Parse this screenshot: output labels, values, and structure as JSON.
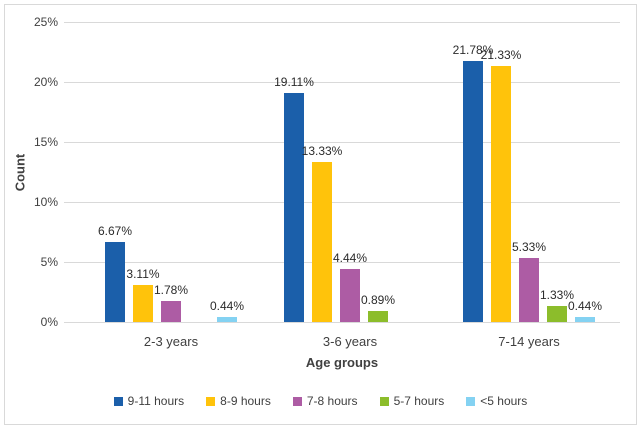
{
  "chart_data": {
    "type": "bar",
    "title": "",
    "xlabel": "Age groups",
    "ylabel": "Count",
    "categories": [
      "2-3 years",
      "3-6 years",
      "7-14 years"
    ],
    "series": [
      {
        "name": "9-11 hours",
        "color": "#1B5FAA",
        "values": [
          6.67,
          19.11,
          21.78
        ]
      },
      {
        "name": "8-9 hours",
        "color": "#FFC30B",
        "values": [
          3.11,
          13.33,
          21.33
        ]
      },
      {
        "name": "7-8 hours",
        "color": "#AD5CA4",
        "values": [
          1.78,
          4.44,
          5.33
        ]
      },
      {
        "name": "5-7 hours",
        "color": "#8CBD2B",
        "values": [
          0,
          0.89,
          1.33
        ]
      },
      {
        "name": "<5 hours",
        "color": "#84D2F2",
        "values": [
          0.44,
          0,
          0.44
        ]
      }
    ],
    "data_labels": [
      [
        "6.67%",
        "19.11%",
        "21.78%"
      ],
      [
        "3.11%",
        "13.33%",
        "21.33%"
      ],
      [
        "1.78%",
        "4.44%",
        "5.33%"
      ],
      [
        "",
        "0.89%",
        "1.33%"
      ],
      [
        "0.44%",
        "",
        "0.44%"
      ]
    ],
    "ylim": [
      0,
      25
    ],
    "ytick_values": [
      0,
      5,
      10,
      15,
      20,
      25
    ],
    "yticks": [
      "0%",
      "5%",
      "10%",
      "15%",
      "20%",
      "25%"
    ],
    "grid": true,
    "legend_position": "bottom",
    "colors": {
      "gridline": "#D9D9D9",
      "frame_border": "#D9D9D9",
      "axis_text": "#404040"
    }
  }
}
